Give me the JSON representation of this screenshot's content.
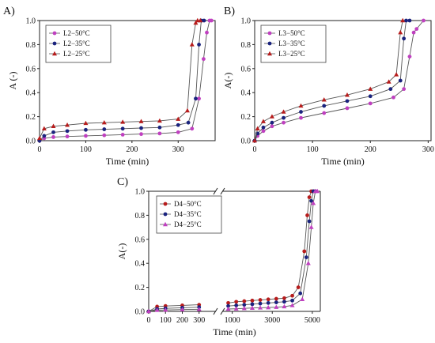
{
  "figure": {
    "panel_labels": [
      "A)",
      "B)",
      "C)"
    ]
  },
  "chart_data": [
    {
      "type": "line",
      "panel": "A)",
      "xlabel": "Time (min)",
      "ylabel": "A (-)",
      "xlim": [
        0,
        380
      ],
      "ylim": [
        0,
        1.0
      ],
      "xticks": [
        0,
        100,
        200,
        300
      ],
      "yticks": [
        0.0,
        0.2,
        0.4,
        0.6,
        0.8,
        1.0
      ],
      "legend_position": "top-left",
      "series": [
        {
          "name": "L2−50°C",
          "color": "#c040c0",
          "x": [
            0,
            10,
            30,
            60,
            100,
            140,
            180,
            220,
            260,
            300,
            330,
            345,
            355,
            362,
            368,
            372
          ],
          "y": [
            0.0,
            0.02,
            0.03,
            0.035,
            0.04,
            0.045,
            0.05,
            0.055,
            0.06,
            0.07,
            0.1,
            0.35,
            0.68,
            0.9,
            1.0,
            1.0
          ]
        },
        {
          "name": "L2−35°C",
          "color": "#1a237e",
          "x": [
            0,
            10,
            30,
            60,
            100,
            140,
            180,
            220,
            260,
            300,
            322,
            338,
            345,
            350,
            356
          ],
          "y": [
            0.0,
            0.04,
            0.07,
            0.08,
            0.09,
            0.095,
            0.1,
            0.105,
            0.11,
            0.13,
            0.15,
            0.35,
            0.8,
            1.0,
            1.0
          ]
        },
        {
          "name": "L2−25°C",
          "color": "#b71c1c",
          "x": [
            0,
            10,
            30,
            60,
            100,
            140,
            180,
            220,
            260,
            300,
            320,
            330,
            338,
            342,
            348
          ],
          "y": [
            0.02,
            0.1,
            0.12,
            0.13,
            0.145,
            0.15,
            0.155,
            0.16,
            0.165,
            0.18,
            0.25,
            0.8,
            0.98,
            1.0,
            1.0
          ]
        }
      ]
    },
    {
      "type": "line",
      "panel": "B)",
      "xlabel": "Time (min)",
      "ylabel": "A(-)",
      "xlim": [
        0,
        305
      ],
      "ylim": [
        0,
        1.0
      ],
      "xticks": [
        0,
        100,
        200,
        300
      ],
      "yticks": [
        0.0,
        0.2,
        0.4,
        0.6,
        0.8,
        1.0
      ],
      "legend_position": "top-left",
      "series": [
        {
          "name": "L3−50°C",
          "color": "#c040c0",
          "x": [
            0,
            5,
            15,
            30,
            50,
            80,
            120,
            160,
            200,
            240,
            258,
            268,
            275,
            280,
            292
          ],
          "y": [
            0.0,
            0.04,
            0.08,
            0.12,
            0.15,
            0.19,
            0.23,
            0.27,
            0.31,
            0.36,
            0.43,
            0.7,
            0.9,
            0.93,
            1.0
          ]
        },
        {
          "name": "L3−35°C",
          "color": "#1a237e",
          "x": [
            0,
            5,
            15,
            30,
            50,
            80,
            120,
            160,
            200,
            235,
            252,
            258,
            262,
            268
          ],
          "y": [
            0.0,
            0.06,
            0.11,
            0.15,
            0.19,
            0.24,
            0.29,
            0.33,
            0.37,
            0.43,
            0.5,
            0.85,
            1.0,
            1.0
          ]
        },
        {
          "name": "L3−25°C",
          "color": "#b71c1c",
          "x": [
            0,
            5,
            15,
            30,
            50,
            80,
            120,
            160,
            200,
            232,
            245,
            252,
            256
          ],
          "y": [
            0.0,
            0.1,
            0.16,
            0.2,
            0.24,
            0.29,
            0.34,
            0.38,
            0.43,
            0.49,
            0.55,
            0.9,
            1.0
          ]
        }
      ]
    },
    {
      "type": "line",
      "panel": "C)",
      "xlabel": "Time (min)",
      "ylabel": "A(-)",
      "ylim": [
        0,
        1.0
      ],
      "broken_x_axis": true,
      "segment1": {
        "xlim": [
          0,
          400
        ],
        "xticks": [
          0,
          100,
          200,
          300
        ]
      },
      "segment2": {
        "xlim": [
          500,
          5400
        ],
        "xticks": [
          1000,
          3000,
          5000
        ]
      },
      "yticks": [
        0.0,
        0.2,
        0.4,
        0.6,
        0.8,
        1.0
      ],
      "legend_position": "top-left",
      "series": [
        {
          "name": "D4−50°C",
          "color": "#b71c1c",
          "x": [
            0,
            50,
            100,
            200,
            300,
            800,
            1200,
            1600,
            2000,
            2400,
            2800,
            3200,
            3600,
            4000,
            4300,
            4600,
            4750,
            4850,
            4950,
            5050
          ],
          "y": [
            0.0,
            0.04,
            0.045,
            0.05,
            0.055,
            0.07,
            0.08,
            0.085,
            0.09,
            0.095,
            0.1,
            0.105,
            0.11,
            0.13,
            0.2,
            0.5,
            0.8,
            0.95,
            1.0,
            1.0
          ]
        },
        {
          "name": "D4−35°C",
          "color": "#1a237e",
          "x": [
            0,
            50,
            100,
            200,
            300,
            800,
            1200,
            1600,
            2000,
            2400,
            2800,
            3200,
            3600,
            4000,
            4400,
            4700,
            4850,
            4950,
            5050,
            5150
          ],
          "y": [
            0.0,
            0.02,
            0.025,
            0.03,
            0.035,
            0.045,
            0.05,
            0.055,
            0.06,
            0.065,
            0.07,
            0.075,
            0.08,
            0.09,
            0.15,
            0.45,
            0.75,
            0.92,
            1.0,
            1.0
          ]
        },
        {
          "name": "D4−25°C",
          "color": "#c040c0",
          "x": [
            0,
            50,
            100,
            200,
            300,
            800,
            1200,
            1600,
            2000,
            2400,
            2800,
            3200,
            3600,
            4000,
            4500,
            4800,
            4950,
            5050,
            5150,
            5250
          ],
          "y": [
            0.0,
            0.01,
            0.012,
            0.015,
            0.018,
            0.02,
            0.022,
            0.025,
            0.028,
            0.03,
            0.032,
            0.035,
            0.04,
            0.05,
            0.1,
            0.4,
            0.7,
            0.9,
            1.0,
            1.0
          ]
        }
      ]
    }
  ]
}
